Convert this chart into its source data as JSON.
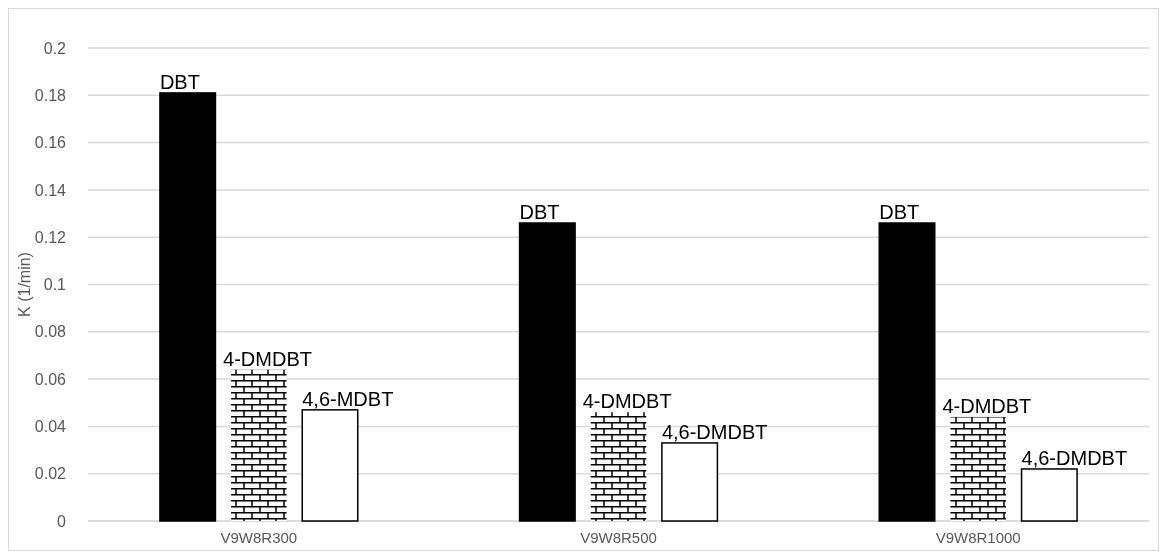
{
  "chart_data": {
    "type": "bar",
    "ylabel": "K (1/min)",
    "categories": [
      "V9W8R300",
      "V9W8R500",
      "V9W8R1000"
    ],
    "series": [
      {
        "color": "#000000",
        "values": [
          0.181,
          0.126,
          0.126
        ]
      },
      {
        "color": "#000000",
        "values": [
          0.064,
          0.046,
          0.044
        ]
      },
      {
        "color": "#ffffff",
        "values": [
          0.047,
          0.033,
          0.022
        ]
      }
    ],
    "annotations": [
      "DBT",
      "4-DMDBT",
      "4,6-MDBT",
      "DBT",
      "4-DMDBT",
      "4,6-DMDBT",
      "DBT",
      "4-DMDBT",
      "4,6-DMDBT"
    ],
    "ylim": [
      0,
      0.2
    ],
    "yticks": [
      0,
      0.02,
      0.04,
      0.06,
      0.08,
      0.1,
      0.12,
      0.14,
      0.16,
      0.18,
      0.2
    ],
    "grid": "y"
  }
}
